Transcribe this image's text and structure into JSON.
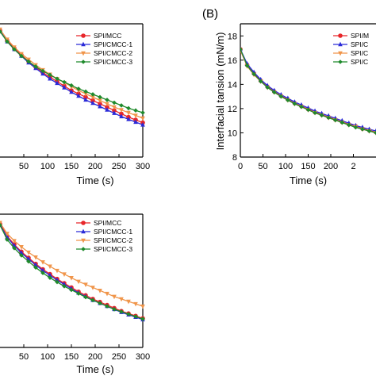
{
  "colors": {
    "SPI/MCC": "#e8262a",
    "SPI/CMCC-1": "#2a2ad8",
    "SPI/CMCC-2": "#f0954a",
    "SPI/CMCC-3": "#1f8a2c"
  },
  "chart_data": [
    {
      "type": "line",
      "panel_label": "",
      "xlabel": "Time (s)",
      "ylabel": "",
      "xlim": [
        0,
        300
      ],
      "ylim": [
        7,
        19
      ],
      "xticks": [
        "50",
        "100",
        "150",
        "200",
        "250",
        "300"
      ],
      "yticks": [],
      "x": [
        0,
        15,
        30,
        45,
        60,
        75,
        90,
        105,
        120,
        135,
        150,
        165,
        180,
        195,
        210,
        225,
        240,
        255,
        270,
        285,
        300
      ],
      "legend": [
        "SPI/MCC",
        "SPI/CMCC-1",
        "SPI/CMCC-2",
        "SPI/CMCC-3"
      ],
      "series": [
        {
          "name": "SPI/MCC",
          "marker": "circle",
          "values": [
            18.4,
            17.5,
            16.8,
            16.2,
            15.6,
            15.1,
            14.6,
            14.2,
            13.8,
            13.4,
            13.0,
            12.7,
            12.4,
            12.1,
            11.8,
            11.5,
            11.2,
            10.9,
            10.6,
            10.35,
            10.1
          ]
        },
        {
          "name": "SPI/CMCC-1",
          "marker": "triangle-up",
          "values": [
            18.4,
            17.4,
            16.7,
            16.1,
            15.5,
            15.0,
            14.5,
            14.05,
            13.65,
            13.25,
            12.85,
            12.5,
            12.15,
            11.85,
            11.55,
            11.25,
            10.95,
            10.65,
            10.4,
            10.15,
            9.9
          ]
        },
        {
          "name": "SPI/CMCC-2",
          "marker": "triangle-down",
          "values": [
            18.5,
            17.6,
            16.9,
            16.3,
            15.8,
            15.3,
            14.85,
            14.45,
            14.05,
            13.7,
            13.35,
            13.0,
            12.7,
            12.4,
            12.1,
            11.8,
            11.5,
            11.25,
            11.0,
            10.75,
            10.5
          ]
        },
        {
          "name": "SPI/CMCC-3",
          "marker": "diamond",
          "values": [
            18.3,
            17.4,
            16.7,
            16.1,
            15.6,
            15.15,
            14.75,
            14.4,
            14.05,
            13.75,
            13.45,
            13.15,
            12.9,
            12.65,
            12.4,
            12.15,
            11.9,
            11.65,
            11.4,
            11.2,
            11.0
          ]
        }
      ]
    },
    {
      "type": "line",
      "panel_label": "(B)",
      "xlabel": "Time (s)",
      "ylabel": "Interfacial tansion (mN/m)",
      "xlim": [
        0,
        300
      ],
      "ylim": [
        8,
        19
      ],
      "xticks": [
        "0",
        "50",
        "100",
        "150",
        "200",
        "2"
      ],
      "yticks": [
        "8",
        "10",
        "12",
        "14",
        "16",
        "18"
      ],
      "x": [
        0,
        15,
        30,
        45,
        60,
        75,
        90,
        105,
        120,
        135,
        150,
        165,
        180,
        195,
        210,
        225,
        240,
        255,
        270,
        285,
        300
      ],
      "legend": [
        "SPI/M",
        "SPI/C",
        "SPI/C",
        "SPI/C"
      ],
      "series": [
        {
          "name": "SPI/M",
          "marker": "circle",
          "values": [
            16.9,
            15.6,
            14.9,
            14.3,
            13.8,
            13.4,
            13.05,
            12.75,
            12.45,
            12.2,
            11.95,
            11.7,
            11.5,
            11.3,
            11.1,
            10.9,
            10.7,
            10.55,
            10.35,
            10.2,
            10.05
          ]
        },
        {
          "name": "SPI/C",
          "marker": "triangle-up",
          "values": [
            16.9,
            15.7,
            15.0,
            14.4,
            13.9,
            13.5,
            13.15,
            12.85,
            12.55,
            12.3,
            12.05,
            11.8,
            11.6,
            11.4,
            11.2,
            11.0,
            10.8,
            10.6,
            10.45,
            10.3,
            10.15
          ]
        },
        {
          "name": "SPI/C",
          "marker": "triangle-down",
          "values": [
            16.8,
            15.5,
            14.8,
            14.25,
            13.75,
            13.35,
            13.0,
            12.7,
            12.4,
            12.15,
            11.9,
            11.65,
            11.45,
            11.25,
            11.05,
            10.85,
            10.65,
            10.5,
            10.3,
            10.15,
            10.0
          ]
        },
        {
          "name": "SPI/C",
          "marker": "diamond",
          "values": [
            16.9,
            15.55,
            14.85,
            14.25,
            13.75,
            13.35,
            13.0,
            12.7,
            12.4,
            12.15,
            11.9,
            11.65,
            11.45,
            11.25,
            11.05,
            10.85,
            10.65,
            10.45,
            10.3,
            10.15,
            10.0
          ]
        }
      ]
    },
    {
      "type": "line",
      "panel_label": "",
      "xlabel": "Time (s)",
      "ylabel": "",
      "xlim": [
        0,
        300
      ],
      "ylim": [
        8,
        19
      ],
      "xticks": [
        "50",
        "100",
        "150",
        "200",
        "250",
        "300"
      ],
      "yticks": [],
      "x": [
        0,
        15,
        30,
        45,
        60,
        75,
        90,
        105,
        120,
        135,
        150,
        165,
        180,
        195,
        210,
        225,
        240,
        255,
        270,
        285,
        300
      ],
      "legend": [
        "SPI/MCC",
        "SPI/CMCC-1",
        "SPI/CMCC-2",
        "SPI/CMCC-3"
      ],
      "series": [
        {
          "name": "SPI/MCC",
          "marker": "circle",
          "values": [
            18.2,
            17.2,
            16.5,
            15.9,
            15.4,
            14.9,
            14.45,
            14.05,
            13.65,
            13.3,
            12.95,
            12.6,
            12.3,
            12.0,
            11.75,
            11.5,
            11.25,
            11.0,
            10.8,
            10.6,
            10.4
          ]
        },
        {
          "name": "SPI/CMCC-1",
          "marker": "triangle-up",
          "values": [
            18.1,
            17.1,
            16.4,
            15.8,
            15.3,
            14.8,
            14.35,
            13.95,
            13.55,
            13.2,
            12.85,
            12.5,
            12.2,
            11.9,
            11.65,
            11.4,
            11.15,
            10.9,
            10.7,
            10.5,
            10.3
          ]
        },
        {
          "name": "SPI/CMCC-2",
          "marker": "triangle-down",
          "values": [
            18.3,
            17.4,
            16.8,
            16.3,
            15.85,
            15.45,
            15.05,
            14.7,
            14.35,
            14.05,
            13.75,
            13.45,
            13.2,
            12.95,
            12.7,
            12.45,
            12.2,
            12.0,
            11.8,
            11.6,
            11.4
          ]
        },
        {
          "name": "SPI/CMCC-3",
          "marker": "diamond",
          "values": [
            18.1,
            16.9,
            16.2,
            15.6,
            15.1,
            14.6,
            14.15,
            13.75,
            13.4,
            13.05,
            12.75,
            12.45,
            12.15,
            11.9,
            11.65,
            11.4,
            11.15,
            10.95,
            10.75,
            10.55,
            10.35
          ]
        }
      ]
    }
  ]
}
